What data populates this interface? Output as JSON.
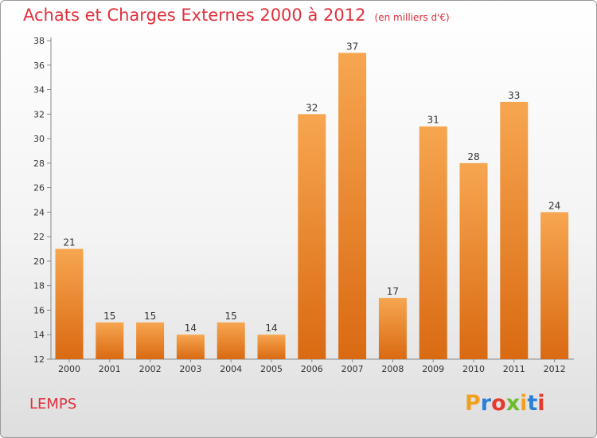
{
  "header": {
    "title": "Achats et Charges Externes 2000 à 2012",
    "unit": "(en milliers d'€)"
  },
  "location": "LEMPS",
  "logo": {
    "text": "Proxiti",
    "colors": [
      "#f0a020",
      "#2c7fd6",
      "#e53a2f",
      "#6cbc2f",
      "#f0a020",
      "#2c7fd6",
      "#e53a2f"
    ]
  },
  "chart_data": {
    "type": "bar",
    "categories": [
      "2000",
      "2001",
      "2002",
      "2003",
      "2004",
      "2005",
      "2006",
      "2007",
      "2008",
      "2009",
      "2010",
      "2011",
      "2012"
    ],
    "values": [
      21,
      15,
      15,
      14,
      15,
      14,
      32,
      37,
      17,
      31,
      28,
      33,
      24
    ],
    "ylim": [
      12,
      38
    ],
    "yticks": [
      12,
      14,
      16,
      18,
      20,
      22,
      24,
      26,
      28,
      30,
      32,
      34,
      36,
      38
    ],
    "grid": false,
    "bar_color": "#f08a28"
  }
}
